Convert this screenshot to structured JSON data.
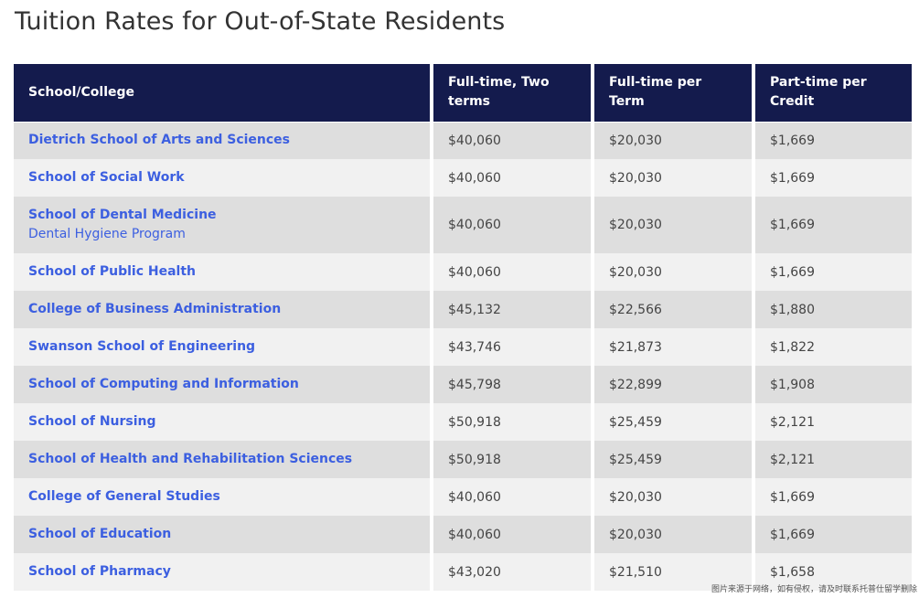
{
  "page": {
    "title": "Tuition Rates for Out-of-State Residents"
  },
  "table": {
    "headers": [
      "School/College",
      "Full-time, Two terms",
      "Full-time per Term",
      "Part-time per Credit"
    ],
    "rows": [
      {
        "school": "Dietrich School of Arts and Sciences",
        "sub": "",
        "two_terms": "$40,060",
        "per_term": "$20,030",
        "per_credit": "$1,669"
      },
      {
        "school": "School of Social Work",
        "sub": "",
        "two_terms": "$40,060",
        "per_term": "$20,030",
        "per_credit": "$1,669"
      },
      {
        "school": "School of Dental Medicine",
        "sub": "Dental Hygiene Program",
        "two_terms": "$40,060",
        "per_term": "$20,030",
        "per_credit": "$1,669"
      },
      {
        "school": "School of Public Health",
        "sub": "",
        "two_terms": "$40,060",
        "per_term": "$20,030",
        "per_credit": "$1,669"
      },
      {
        "school": "College of Business Administration",
        "sub": "",
        "two_terms": "$45,132",
        "per_term": "$22,566",
        "per_credit": "$1,880"
      },
      {
        "school": "Swanson School of Engineering",
        "sub": "",
        "two_terms": "$43,746",
        "per_term": "$21,873",
        "per_credit": "$1,822"
      },
      {
        "school": "School of Computing and Information",
        "sub": "",
        "two_terms": "$45,798",
        "per_term": "$22,899",
        "per_credit": "$1,908"
      },
      {
        "school": "School of Nursing",
        "sub": "",
        "two_terms": "$50,918",
        "per_term": "$25,459",
        "per_credit": "$2,121"
      },
      {
        "school": "School of Health and Rehabilitation Sciences",
        "sub": "",
        "two_terms": "$50,918",
        "per_term": "$25,459",
        "per_credit": "$2,121"
      },
      {
        "school": "College of General Studies",
        "sub": "",
        "two_terms": "$40,060",
        "per_term": "$20,030",
        "per_credit": "$1,669"
      },
      {
        "school": "School of Education",
        "sub": "",
        "two_terms": "$40,060",
        "per_term": "$20,030",
        "per_credit": "$1,669"
      },
      {
        "school": "School of Pharmacy",
        "sub": "",
        "two_terms": "$43,020",
        "per_term": "$21,510",
        "per_credit": "$1,658"
      }
    ]
  },
  "watermark": "图片来源于网络，如有侵权，请及时联系托普仕留学删除"
}
